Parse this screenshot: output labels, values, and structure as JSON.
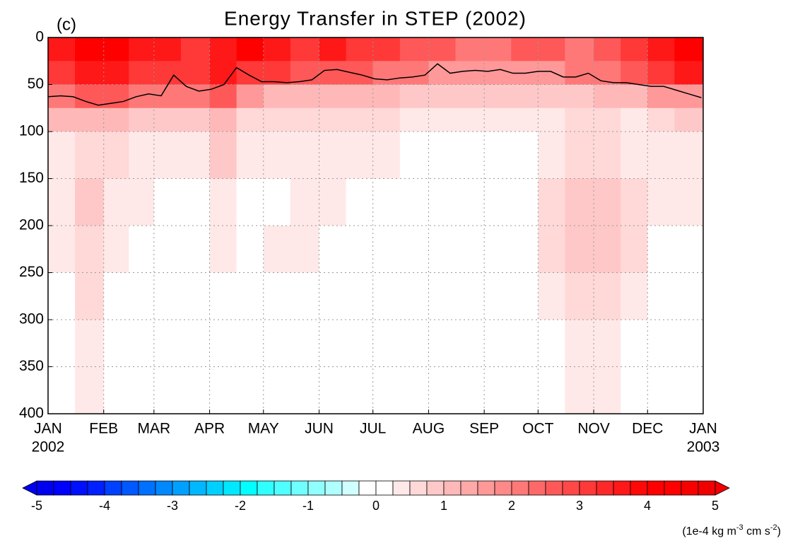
{
  "chart_data": {
    "type": "heatmap",
    "title": "Energy Transfer in STEP (2002)",
    "panel_label": "(c)",
    "xlim": [
      0,
      365
    ],
    "xticks": [
      {
        "value": 0,
        "label": "JAN"
      },
      {
        "value": 31,
        "label": "FEB"
      },
      {
        "value": 59,
        "label": "MAR"
      },
      {
        "value": 90,
        "label": "APR"
      },
      {
        "value": 120,
        "label": "MAY"
      },
      {
        "value": 151,
        "label": "JUN"
      },
      {
        "value": 181,
        "label": "JUL"
      },
      {
        "value": 212,
        "label": "AUG"
      },
      {
        "value": 243,
        "label": "SEP"
      },
      {
        "value": 273,
        "label": "OCT"
      },
      {
        "value": 304,
        "label": "NOV"
      },
      {
        "value": 334,
        "label": "DEC"
      },
      {
        "value": 365,
        "label": "JAN"
      }
    ],
    "year_labels": [
      "2002",
      "2003"
    ],
    "ylim": [
      0,
      400
    ],
    "yticks": [
      0,
      50,
      100,
      150,
      200,
      250,
      300,
      350,
      400
    ],
    "grid": true,
    "heatmap": {
      "x_bins": [
        0,
        15,
        31,
        45,
        59,
        74,
        90,
        105,
        120,
        135,
        151,
        166,
        181,
        196,
        212,
        227,
        243,
        258,
        273,
        288,
        304,
        319,
        334,
        349,
        365
      ],
      "y_bins": [
        0,
        25,
        50,
        75,
        100,
        150,
        200,
        250,
        300,
        400
      ],
      "values": [
        [
          3.5,
          4,
          4,
          3.5,
          3.5,
          3,
          3.5,
          4,
          3.5,
          3,
          3.5,
          3,
          3,
          2.5,
          2.5,
          2,
          2,
          2.5,
          2.5,
          2,
          2.5,
          3,
          3.5,
          4
        ],
        [
          3,
          3.5,
          3.5,
          3,
          3,
          3,
          3.5,
          3,
          3,
          2.5,
          2.5,
          2.5,
          2,
          2,
          1.5,
          1.5,
          1.5,
          1.5,
          1.5,
          2,
          2,
          2.5,
          3,
          3.5
        ],
        [
          2,
          2.5,
          2.5,
          2,
          2,
          2,
          2.5,
          1.5,
          1,
          1,
          1,
          1,
          1,
          0.8,
          0.8,
          0.8,
          0.8,
          0.8,
          0.8,
          0.8,
          1,
          1,
          1.5,
          1.5
        ],
        [
          1,
          1.2,
          1,
          0.8,
          0.8,
          0.8,
          1.2,
          0.6,
          0.5,
          0.5,
          0.5,
          0.6,
          0.6,
          0.4,
          0.4,
          0.3,
          0.3,
          0.3,
          0.4,
          0.5,
          0.5,
          0.4,
          0.5,
          0.8
        ],
        [
          0.4,
          0.6,
          0.5,
          0.3,
          0.3,
          0.4,
          0.8,
          0.3,
          0.3,
          0.3,
          0.3,
          0.3,
          0.4,
          0.2,
          0.2,
          0.2,
          0.2,
          0.2,
          0.4,
          0.6,
          0.6,
          0.4,
          0.3,
          0.4
        ],
        [
          0.4,
          0.8,
          0.4,
          0.3,
          0.2,
          0.2,
          0.4,
          0.2,
          0.2,
          0.4,
          0.3,
          0.2,
          0.2,
          0.2,
          0.2,
          0.1,
          0.1,
          0.2,
          0.5,
          0.8,
          0.8,
          0.5,
          0.3,
          0.3
        ],
        [
          0.3,
          0.7,
          0.3,
          0.2,
          0.2,
          0.2,
          0.3,
          0.2,
          0.4,
          0.4,
          0.2,
          0.2,
          0.1,
          0.1,
          0.1,
          0,
          0.1,
          0.2,
          0.5,
          0.8,
          0.8,
          0.5,
          0.2,
          0.2
        ],
        [
          0.2,
          0.5,
          0.2,
          0.2,
          0.1,
          0.1,
          0.2,
          0.1,
          0.2,
          0.2,
          0.1,
          0.1,
          0,
          0,
          0,
          0,
          0,
          0.1,
          0.4,
          0.6,
          0.6,
          0.4,
          0.2,
          0.2
        ],
        [
          0.1,
          0.3,
          0.1,
          0.1,
          0.1,
          0.1,
          0.1,
          0.1,
          0.1,
          0.1,
          0.1,
          0,
          0,
          0,
          0,
          0,
          0,
          0.1,
          0.2,
          0.4,
          0.4,
          0.2,
          0.1,
          0.1
        ]
      ]
    },
    "line": {
      "color": "#000000",
      "x": [
        0,
        7,
        14,
        21,
        28,
        35,
        42,
        49,
        56,
        63,
        70,
        77,
        84,
        91,
        98,
        105,
        112,
        119,
        126,
        133,
        140,
        147,
        154,
        161,
        168,
        175,
        182,
        189,
        196,
        203,
        210,
        217,
        224,
        231,
        238,
        245,
        252,
        259,
        266,
        273,
        280,
        287,
        294,
        301,
        308,
        315,
        322,
        329,
        336,
        343,
        350,
        357,
        364
      ],
      "values": [
        63,
        62,
        63,
        68,
        72,
        70,
        68,
        63,
        60,
        62,
        40,
        52,
        57,
        55,
        50,
        32,
        40,
        47,
        47,
        48,
        47,
        45,
        35,
        34,
        37,
        40,
        44,
        45,
        43,
        42,
        40,
        28,
        38,
        36,
        35,
        36,
        34,
        38,
        38,
        36,
        36,
        42,
        42,
        38,
        46,
        48,
        48,
        50,
        52,
        52,
        56,
        60,
        64
      ]
    },
    "colorbar": {
      "levels": [
        -5,
        -4.75,
        -4.5,
        -4.25,
        -4,
        -3.75,
        -3.5,
        -3.25,
        -3,
        -2.75,
        -2.5,
        -2.25,
        -2,
        -1.75,
        -1.5,
        -1.25,
        -1,
        -0.75,
        -0.5,
        -0.25,
        0,
        0.25,
        0.5,
        0.75,
        1,
        1.25,
        1.5,
        1.75,
        2,
        2.25,
        2.5,
        2.75,
        3,
        3.25,
        3.5,
        3.75,
        4,
        4.25,
        4.5,
        4.75,
        5
      ],
      "colors": [
        "#0000f0",
        "#0000ff",
        "#0010ff",
        "#0020ff",
        "#0040ff",
        "#0058ff",
        "#0070ff",
        "#0088ff",
        "#00a0ff",
        "#00b8ff",
        "#00d0ff",
        "#00e8ff",
        "#00ffff",
        "#30ffff",
        "#50ffff",
        "#70ffff",
        "#90ffff",
        "#b0ffff",
        "#d0ffff",
        "#ffffff",
        "#ffffff",
        "#ffe8e8",
        "#ffd8d8",
        "#ffc8c8",
        "#ffb8b8",
        "#ffa8a8",
        "#ff9898",
        "#ff8888",
        "#ff7878",
        "#ff6868",
        "#ff5858",
        "#ff4848",
        "#ff3838",
        "#ff2828",
        "#ff1818",
        "#ff0808",
        "#ff0000",
        "#ff0000",
        "#f80000",
        "#f00000"
      ],
      "ticks": [
        -5,
        -4,
        -3,
        -2,
        -1,
        0,
        1,
        2,
        3,
        4,
        5
      ],
      "units": [
        "(1e-4 kg m",
        "-3",
        " cm s",
        "-2",
        ")"
      ]
    }
  }
}
